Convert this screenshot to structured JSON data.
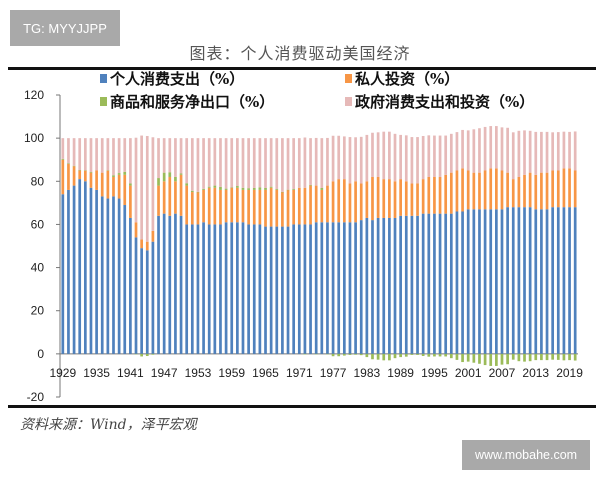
{
  "watermark_top": "TG: MYYJJPP",
  "watermark_bottom": "www.mobahe.com",
  "source": "资料来源：Wind，泽平宏观",
  "chart_data": {
    "type": "bar",
    "stacked": true,
    "title": "图表：个人消费驱动美国经济",
    "xlabel": "",
    "ylabel": "",
    "ylim": [
      -20,
      120
    ],
    "yticks": [
      -20,
      0,
      20,
      40,
      60,
      80,
      100,
      120
    ],
    "xtick_labels": [
      "1929",
      "1935",
      "1941",
      "1947",
      "1953",
      "1959",
      "1965",
      "1971",
      "1977",
      "1983",
      "1989",
      "1995",
      "2001",
      "2007",
      "2013",
      "2019"
    ],
    "legend_position": "top",
    "x_start": 1929,
    "x_end": 2020,
    "series": [
      {
        "name": "个人消费支出（%）",
        "color": "#4f81bd",
        "values": [
          74,
          76,
          78,
          81,
          80,
          77,
          76,
          73,
          72,
          73,
          72,
          69,
          63,
          54,
          49,
          48,
          52,
          64,
          65,
          64,
          65,
          64,
          60,
          60,
          60,
          61,
          60,
          60,
          60,
          61,
          61,
          61,
          61,
          60,
          60,
          60,
          59,
          59,
          59,
          59,
          59,
          60,
          60,
          60,
          60,
          61,
          61,
          61,
          61,
          61,
          61,
          61,
          61,
          62,
          63,
          62,
          63,
          63,
          63,
          63,
          64,
          64,
          64,
          64,
          65,
          65,
          65,
          65,
          65,
          65,
          66,
          66,
          67,
          67,
          67,
          67,
          67,
          67,
          67,
          68,
          68,
          68,
          68,
          68,
          67,
          67,
          67,
          68,
          68,
          68,
          68,
          68
        ]
      },
      {
        "name": "私人投资（%）",
        "color": "#f79646",
        "values": [
          16,
          12,
          9,
          4,
          5,
          7,
          9,
          11,
          13,
          9,
          11,
          14,
          15,
          7,
          4,
          4,
          5,
          14,
          15,
          18,
          15,
          19,
          18,
          15,
          15,
          15,
          17,
          17,
          16,
          15,
          16,
          16,
          15,
          16,
          16,
          16,
          17,
          18,
          17,
          16,
          17,
          16,
          17,
          17,
          18,
          17,
          15,
          17,
          19,
          20,
          20,
          18,
          19,
          17,
          17,
          20,
          19,
          18,
          18,
          17,
          17,
          16,
          15,
          15,
          16,
          17,
          17,
          17,
          18,
          19,
          19,
          20,
          18,
          17,
          17,
          18,
          19,
          19,
          18,
          16,
          13,
          14,
          15,
          16,
          16,
          17,
          17,
          17,
          17,
          18,
          18,
          17
        ]
      },
      {
        "name": "商品和服务净出口（%）",
        "color": "#9bbb59",
        "values": [
          0.4,
          0.3,
          0.2,
          0.2,
          0.1,
          0.3,
          0.0,
          0.0,
          0.1,
          0.8,
          0.8,
          1.4,
          1.0,
          -0.2,
          -1.2,
          -1.0,
          -0.4,
          3.5,
          4.0,
          2.2,
          2.0,
          0.6,
          1.1,
          0.6,
          0.1,
          0.5,
          0.5,
          1.0,
          1.4,
          0.6,
          0.1,
          0.8,
          1.0,
          0.8,
          0.9,
          1.2,
          0.9,
          0.5,
          0.4,
          0.1,
          0.1,
          0.4,
          0.0,
          -0.3,
          0.3,
          -0.1,
          0.9,
          -0.1,
          -1.1,
          -1.1,
          -0.8,
          -0.5,
          -0.4,
          -0.6,
          -1.5,
          -2.5,
          -2.7,
          -3.0,
          -3.0,
          -2.0,
          -1.5,
          -1.3,
          -0.5,
          -0.5,
          -1.0,
          -1.3,
          -1.2,
          -1.2,
          -1.2,
          -2.0,
          -2.8,
          -3.8,
          -3.6,
          -4.1,
          -4.6,
          -5.2,
          -5.6,
          -5.6,
          -5.0,
          -4.8,
          -2.7,
          -3.4,
          -3.6,
          -3.4,
          -2.9,
          -2.9,
          -2.9,
          -2.7,
          -2.8,
          -3.0,
          -2.9,
          -3.1
        ]
      },
      {
        "name": "政府消费支出和投资（%）",
        "color": "#e6b9b8",
        "values": [
          9.6,
          11.7,
          12.8,
          14.8,
          14.9,
          15.7,
          15,
          16,
          14.9,
          17.2,
          16.2,
          15.6,
          21,
          39.2,
          48.2,
          49,
          43.4,
          18.5,
          16,
          15.8,
          18,
          16.4,
          20.9,
          24.4,
          24.9,
          23.5,
          22.5,
          22,
          22.6,
          23.4,
          22.9,
          22.2,
          23,
          23.2,
          23.1,
          22.8,
          23.1,
          22.5,
          23.6,
          24.9,
          23.9,
          23.6,
          23,
          23.3,
          21.7,
          22.1,
          23.1,
          22.1,
          21.1,
          20.1,
          19.8,
          21.5,
          20.4,
          21.6,
          21.5,
          20.5,
          20.7,
          22,
          22,
          22,
          20.5,
          21.3,
          21.5,
          21.5,
          20,
          19.3,
          19.2,
          19.2,
          18.2,
          18,
          17.8,
          17.8,
          18.6,
          20.1,
          20.6,
          20.2,
          19.6,
          19.6,
          20,
          20.8,
          21.7,
          21.4,
          20.6,
          19.4,
          19.9,
          18.9,
          18.9,
          17.7,
          17.8,
          17,
          16.9,
          18.1
        ]
      }
    ]
  }
}
